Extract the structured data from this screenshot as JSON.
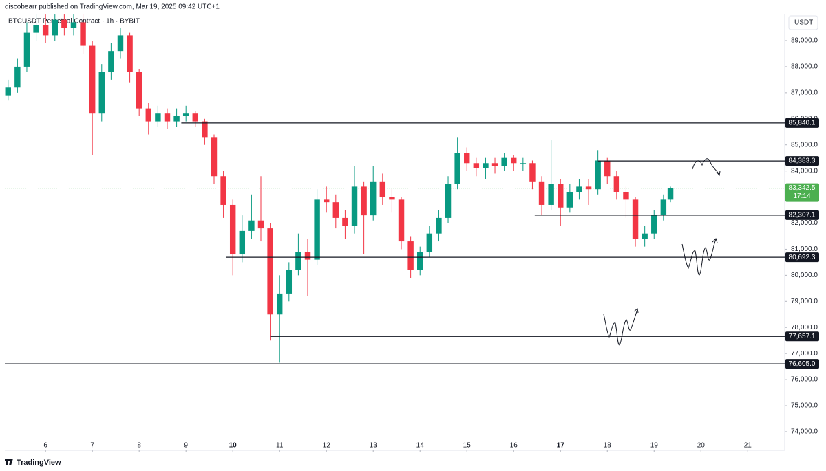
{
  "header": {
    "publisher": "discobearr published on TradingView.com, Mar 19, 2025 09:42 UTC+1"
  },
  "footer": {
    "brand": "TradingView"
  },
  "chart_data": {
    "type": "candlestick",
    "title": "BTCUSDT Perpetual Contract · 1h · BYBIT",
    "currency": "USDT",
    "up_color": "#089981",
    "down_color": "#f23645",
    "xlim": [
      5.13,
      21.79
    ],
    "ylim": [
      73287,
      90028
    ],
    "xticks": [
      6,
      7,
      8,
      9,
      10,
      11,
      12,
      13,
      14,
      15,
      16,
      17,
      18,
      19,
      20,
      21
    ],
    "yticks": [
      {
        "value": 74000,
        "label": "74,000.0"
      },
      {
        "value": 75000,
        "label": "75,000.0"
      },
      {
        "value": 76000,
        "label": "76,000.0"
      },
      {
        "value": 77000,
        "label": "77,000.0"
      },
      {
        "value": 78000,
        "label": "78,000.0"
      },
      {
        "value": 79000,
        "label": "79,000.0"
      },
      {
        "value": 80000,
        "label": "80,000.0"
      },
      {
        "value": 81000,
        "label": "81,000.0"
      },
      {
        "value": 82000,
        "label": "82,000.0"
      },
      {
        "value": 83000,
        "label": "83,000.0"
      },
      {
        "value": 84000,
        "label": "84,000.0"
      },
      {
        "value": 85000,
        "label": "85,000.0"
      },
      {
        "value": 86000,
        "label": "86,000.0"
      },
      {
        "value": 87000,
        "label": "87,000.0"
      },
      {
        "value": 88000,
        "label": "88,000.0"
      },
      {
        "value": 89000,
        "label": "89,000.0"
      }
    ],
    "x": [
      5.2,
      5.4,
      5.6,
      5.8,
      6.0,
      6.2,
      6.4,
      6.6,
      6.8,
      7.0,
      7.2,
      7.4,
      7.6,
      7.8,
      8.0,
      8.2,
      8.4,
      8.6,
      8.8,
      9.0,
      9.2,
      9.4,
      9.6,
      9.8,
      10.0,
      10.2,
      10.4,
      10.6,
      10.8,
      11.0,
      11.2,
      11.4,
      11.6,
      11.8,
      12.0,
      12.2,
      12.4,
      12.6,
      12.8,
      13.0,
      13.2,
      13.4,
      13.6,
      13.8,
      14.0,
      14.2,
      14.4,
      14.6,
      14.8,
      15.0,
      15.2,
      15.4,
      15.6,
      15.8,
      16.0,
      16.2,
      16.4,
      16.6,
      16.8,
      17.0,
      17.2,
      17.4,
      17.6,
      17.8,
      18.0,
      18.2,
      18.4,
      18.6,
      18.8,
      19.0,
      19.2,
      19.35
    ],
    "open": [
      86900,
      87200,
      88000,
      89300,
      89600,
      89200,
      89800,
      89500,
      89700,
      88800,
      86200,
      87800,
      88600,
      89200,
      87800,
      86400,
      85900,
      86200,
      85900,
      86100,
      86200,
      85900,
      85300,
      83800,
      82700,
      80800,
      81700,
      82100,
      81800,
      78500,
      79300,
      80200,
      80900,
      80600,
      82900,
      82800,
      82200,
      81900,
      83400,
      82300,
      83600,
      83000,
      82900,
      81300,
      80200,
      80900,
      81600,
      82200,
      83500,
      84700,
      84300,
      84100,
      84300,
      84200,
      84500,
      84300,
      84300,
      83600,
      82700,
      83500,
      82600,
      83200,
      83400,
      83300,
      84400,
      83800,
      83200,
      82900,
      81400,
      81600,
      82300,
      82900
    ],
    "high": [
      87500,
      88300,
      89700,
      90000,
      90000,
      90000,
      90000,
      90000,
      90000,
      89000,
      88100,
      88900,
      89500,
      89300,
      87900,
      86600,
      86500,
      86400,
      86400,
      86500,
      86300,
      86000,
      85400,
      84000,
      82900,
      82300,
      83100,
      83800,
      82000,
      80000,
      80500,
      81600,
      81400,
      83300,
      83400,
      83100,
      82500,
      84200,
      83600,
      84200,
      83900,
      83300,
      83000,
      81500,
      81100,
      81900,
      82500,
      83800,
      85300,
      84900,
      84500,
      84500,
      84500,
      84700,
      84600,
      84500,
      84400,
      83800,
      85200,
      83700,
      83500,
      83700,
      83700,
      84800,
      84500,
      84000,
      83400,
      83000,
      81900,
      82500,
      83100,
      83400
    ],
    "low": [
      86700,
      87000,
      87800,
      89000,
      88900,
      89000,
      89200,
      89200,
      88500,
      84600,
      85900,
      87500,
      88300,
      87400,
      86100,
      85400,
      85700,
      85600,
      85700,
      85900,
      85700,
      85000,
      83500,
      82200,
      80000,
      80500,
      81400,
      81300,
      77500,
      76650,
      79000,
      80000,
      79200,
      80400,
      82400,
      81800,
      81400,
      81600,
      80800,
      82100,
      82700,
      82400,
      81000,
      79900,
      80000,
      80700,
      81300,
      82000,
      83300,
      84000,
      83800,
      83700,
      83900,
      84000,
      84000,
      84000,
      83300,
      82300,
      82500,
      81900,
      82400,
      82900,
      82700,
      83100,
      83500,
      82900,
      82200,
      81100,
      81100,
      81400,
      82100,
      82800
    ],
    "close": [
      87200,
      88000,
      89300,
      89600,
      89200,
      89800,
      89500,
      89700,
      88800,
      86200,
      87800,
      88600,
      89200,
      87800,
      86400,
      85900,
      86200,
      85900,
      86100,
      86200,
      85900,
      85300,
      83800,
      82700,
      80800,
      81700,
      82100,
      81800,
      78500,
      79300,
      80200,
      80900,
      80600,
      82900,
      82800,
      82200,
      81900,
      83400,
      82300,
      83600,
      83000,
      82900,
      81300,
      80200,
      80900,
      81600,
      82200,
      83500,
      84700,
      84300,
      84100,
      84300,
      84200,
      84500,
      84300,
      84300,
      83600,
      82700,
      83500,
      82600,
      83200,
      83400,
      83300,
      84400,
      83800,
      83200,
      82900,
      81400,
      81600,
      82300,
      82900,
      83342.5
    ],
    "levels": [
      {
        "value": 85840.1,
        "label": "85,840.1",
        "start": 8.9
      },
      {
        "value": 84383.3,
        "label": "84,383.3",
        "start": 17.8
      },
      {
        "value": 82307.1,
        "label": "82,307.1",
        "start": 16.45
      },
      {
        "value": 80692.3,
        "label": "80,692.3",
        "start": 9.85
      },
      {
        "value": 77657.1,
        "label": "77,657.1",
        "start": 10.8
      },
      {
        "value": 76605.0,
        "label": "76,605.0",
        "start": 5.13
      }
    ],
    "last_price": {
      "value": 83342.5,
      "label": "83,342.5",
      "countdown": "17:14",
      "color": "#4caf50"
    }
  }
}
